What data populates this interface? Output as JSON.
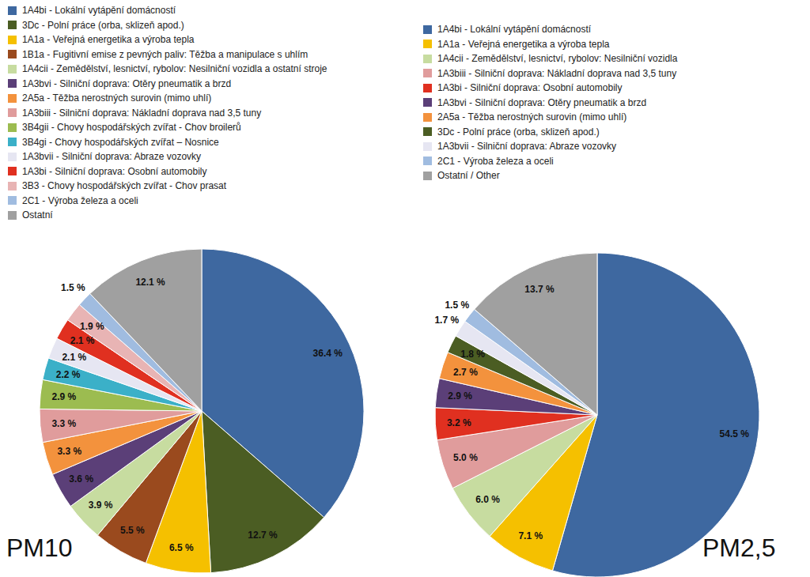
{
  "chart_data": [
    {
      "type": "pie",
      "title": "PM10",
      "legend": "top",
      "data_labels": true,
      "categories": [
        "1A4bi - Lokální vytápění domácností",
        "3Dc - Polní práce (orba, sklizeň apod.)",
        "1A1a - Veřejná energetika a výroba tepla",
        "1B1a - Fugitivní emise z pevných paliv: Těžba a manipulace s uhlím",
        "1A4cii - Zemědělství, lesnictví, rybolov: Nesilniční vozidla a ostatní stroje",
        "1A3bvi - Silniční doprava: Otěry pneumatik a brzd",
        "2A5a - Těžba nerostných surovin (mimo uhlí)",
        "1A3biii - Silniční doprava: Nákladní doprava nad 3,5 tuny",
        "3B4gii - Chovy hospodářských zvířat - Chov broilerů",
        "3B4gi - Chovy hospodářských zvířat – Nosnice",
        "1A3bvii - Silniční doprava: Abraze vozovky",
        "1A3bi - Silniční doprava: Osobní automobily",
        "3B3 - Chovy hospodářských zvířat - Chov prasat",
        "2C1 - Výroba železa a oceli",
        "Ostatní"
      ],
      "values": [
        36.4,
        12.7,
        6.5,
        5.5,
        3.9,
        3.6,
        3.3,
        3.3,
        2.9,
        2.2,
        2.1,
        2.1,
        1.9,
        1.5,
        12.1
      ],
      "value_labels": [
        "36.4 %",
        "12.7 %",
        "6.5 %",
        "5.5 %",
        "3.9 %",
        "3.6 %",
        "3.3 %",
        "3.3 %",
        "2.9 %",
        "2.2 %",
        "2.1 %",
        "2.1 %",
        "1.9 %",
        "1.5 %",
        "12.1 %"
      ],
      "colors": [
        "#3e68a0",
        "#4b5d23",
        "#f5c000",
        "#9a4a1e",
        "#c7dca0",
        "#5b3f78",
        "#f3923d",
        "#e09c9c",
        "#9cbc50",
        "#3bb0c8",
        "#e6e6f2",
        "#e03020",
        "#e8b4b4",
        "#a0bce0",
        "#a0a0a0"
      ]
    },
    {
      "type": "pie",
      "title": "PM2,5",
      "legend": "top",
      "data_labels": true,
      "categories": [
        "1A4bi - Lokální vytápění domácností",
        "1A1a - Veřejná energetika a výroba tepla",
        "1A4cii - Zemědělství, lesnictví, rybolov: Nesilniční vozidla",
        "1A3biii - Silniční doprava: Nákladní doprava nad 3,5 tuny",
        "1A3bi - Silniční doprava: Osobní automobily",
        "1A3bvi - Silniční doprava: Otěry pneumatik a brzd",
        "2A5a - Těžba nerostných surovin (mimo uhlí)",
        "3Dc - Polní práce (orba, sklizeň apod.)",
        "1A3bvii - Silniční doprava: Abraze vozovky",
        "2C1 - Výroba železa a oceli",
        "Ostatní / Other"
      ],
      "values": [
        54.5,
        7.1,
        6.0,
        5.0,
        3.2,
        2.9,
        2.7,
        1.8,
        1.7,
        1.5,
        13.7
      ],
      "value_labels": [
        "54.5 %",
        "7.1 %",
        "6.0 %",
        "5.0 %",
        "3.2 %",
        "2.9 %",
        "2.7 %",
        "1.8 %",
        "1.7 %",
        "1.5 %",
        "13.7 %"
      ],
      "colors": [
        "#3e68a0",
        "#f5c000",
        "#c7dca0",
        "#e09c9c",
        "#e03020",
        "#5b3f78",
        "#f3923d",
        "#4b5d23",
        "#e6e6f2",
        "#a0bce0",
        "#a0a0a0"
      ]
    }
  ]
}
